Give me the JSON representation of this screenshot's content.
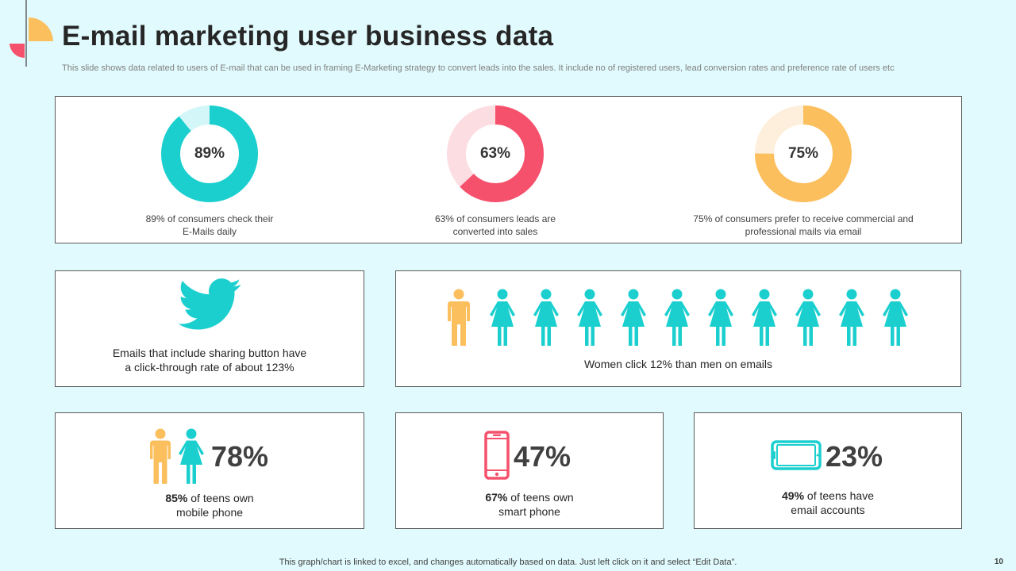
{
  "header": {
    "title": "E-mail marketing user business data",
    "subtitle": "This slide shows data related to users of E-mail that can be used in framing E-Marketing strategy to convert leads into the sales. It include no of registered users, lead conversion rates and preference rate of users etc"
  },
  "colors": {
    "teal": "#1ccfcf",
    "teal_light": "#d3f6f8",
    "red": "#f5516c",
    "red_light": "#fcdde2",
    "orange": "#fbbf5e",
    "orange_light": "#fdefdc"
  },
  "donuts": [
    {
      "value_label": "89%",
      "value": 89,
      "line1": "89% of consumers check their",
      "line2": "E-Mails daily",
      "color": "#1ccfcf",
      "track": "#d3f6f8"
    },
    {
      "value_label": "63%",
      "value": 63,
      "line1": "63% of consumers leads are",
      "line2": "converted  into sales",
      "color": "#f5516c",
      "track": "#fcdde2"
    },
    {
      "value_label": "75%",
      "value": 75,
      "line1": "75% of consumers prefer  to receive  commercial and",
      "line2": "professional  mails via  email",
      "color": "#fbbf5e",
      "track": "#fdefdc"
    }
  ],
  "twitter_card": {
    "icon": "twitter-bird-icon",
    "line1": "Emails that include sharing button have",
    "line2": "a click-through rate of about 123%"
  },
  "women_card": {
    "caption": "Women click 12% than men on emails",
    "men_count": 1,
    "women_count": 10
  },
  "stats": [
    {
      "big": "78%",
      "bold": "85%",
      "line1_rest": " of teens own",
      "line2": "mobile phone",
      "icon": "man-woman-icon"
    },
    {
      "big": "47%",
      "bold": "67%",
      "line1_rest": " of teens own",
      "line2": "smart phone",
      "icon": "smartphone-icon"
    },
    {
      "big": "23%",
      "bold": "49%",
      "line1_rest": " of teens have",
      "line2": "email accounts",
      "icon": "tablet-icon"
    }
  ],
  "footer": {
    "note": "This graph/chart is linked to excel,  and changes automatically based on data. Just left click on it and select “Edit Data”.",
    "page_number": "10"
  }
}
